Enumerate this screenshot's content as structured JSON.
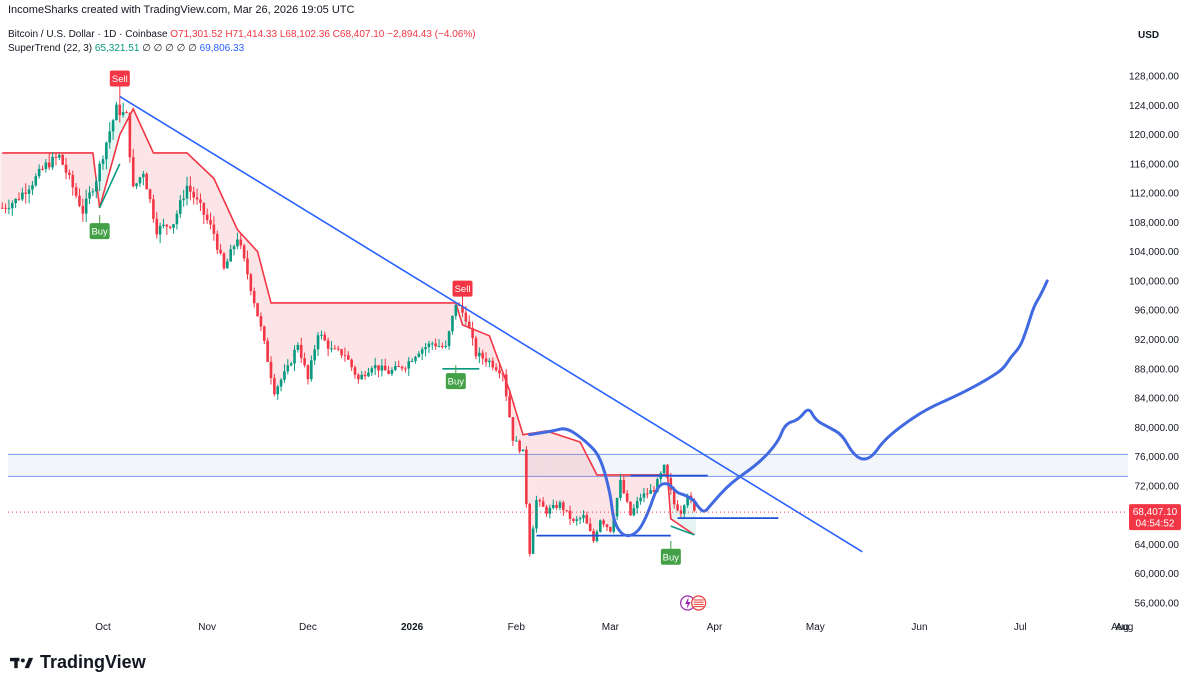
{
  "header": {
    "created_by": "IncomeSharks created with TradingView.com, Mar 26, 2026 19:05 UTC"
  },
  "legend": {
    "symbol": "Bitcoin / U.S. Dollar · 1D · Coinbase",
    "ohlc": "O71,301.52  H71,414.33  L68,102.36  C68,407.10  −2,894.43 (−4.06%)",
    "supertrend_label": "SuperTrend (22, 3)",
    "supertrend_up": "65,321.51",
    "supertrend_zeros": "∅ ∅ ∅ ∅ ∅",
    "supertrend_dn": "69,806.33"
  },
  "axis_currency": "USD",
  "footer": {
    "brand": "TradingView"
  },
  "colors": {
    "up": "#089981",
    "down": "#f23645",
    "trend": "#2962ff",
    "projection": "#4169e1",
    "band": "#e8ecf6"
  },
  "chart_data": {
    "type": "candlestick",
    "title": "Bitcoin / U.S. Dollar · 1D · Coinbase",
    "ylabel": "USD",
    "ylim": [
      54000,
      132000
    ],
    "y_ticks": [
      56000,
      60000,
      64000,
      68000,
      72000,
      76000,
      80000,
      84000,
      88000,
      92000,
      96000,
      100000,
      104000,
      108000,
      112000,
      116000,
      120000,
      124000,
      128000
    ],
    "y_tick_labels": [
      "56,000.00",
      "60,000.00",
      "64,000.00",
      "68,000.00",
      "72,000.00",
      "76,000.00",
      "80,000.00",
      "84,000.00",
      "88,000.00",
      "92,000.00",
      "96,000.00",
      "100,000.00",
      "104,000.00",
      "108,000.00",
      "112,000.00",
      "116,000.00",
      "120,000.00",
      "124,000.00",
      "128,000.00"
    ],
    "x_ticks": [
      "Oct",
      "Nov",
      "Dec",
      "2026",
      "Feb",
      "Mar",
      "Apr",
      "May",
      "Jun",
      "Jul",
      "Aug"
    ],
    "x_tick_dates": [
      "2025-10-01",
      "2025-11-01",
      "2025-12-01",
      "2026-01-01",
      "2026-02-01",
      "2026-03-01",
      "2026-04-01",
      "2026-05-01",
      "2026-06-01",
      "2026-07-01",
      "2026-08-01"
    ],
    "last_price": {
      "value": 68407.1,
      "label": "68,407.10",
      "countdown": "04:54:52"
    },
    "close_path": [
      [
        "2025-09-01",
        110000
      ],
      [
        "2025-09-05",
        111000
      ],
      [
        "2025-09-10",
        113500
      ],
      [
        "2025-09-14",
        115800
      ],
      [
        "2025-09-18",
        117000
      ],
      [
        "2025-09-22",
        112800
      ],
      [
        "2025-09-25",
        109500
      ],
      [
        "2025-09-29",
        114000
      ],
      [
        "2025-10-02",
        119000
      ],
      [
        "2025-10-05",
        123500
      ],
      [
        "2025-10-08",
        122500
      ],
      [
        "2025-10-10",
        112500
      ],
      [
        "2025-10-13",
        115000
      ],
      [
        "2025-10-17",
        107000
      ],
      [
        "2025-10-22",
        108000
      ],
      [
        "2025-10-26",
        113000
      ],
      [
        "2025-10-30",
        110000
      ],
      [
        "2025-11-03",
        106500
      ],
      [
        "2025-11-06",
        101500
      ],
      [
        "2025-11-10",
        106000
      ],
      [
        "2025-11-13",
        101000
      ],
      [
        "2025-11-17",
        93500
      ],
      [
        "2025-11-21",
        85000
      ],
      [
        "2025-11-25",
        88000
      ],
      [
        "2025-11-28",
        91500
      ],
      [
        "2025-12-01",
        86500
      ],
      [
        "2025-12-04",
        93000
      ],
      [
        "2025-12-08",
        90500
      ],
      [
        "2025-12-12",
        90000
      ],
      [
        "2025-12-16",
        86500
      ],
      [
        "2025-12-20",
        88500
      ],
      [
        "2025-12-25",
        87500
      ],
      [
        "2025-12-30",
        88500
      ],
      [
        "2026-01-03",
        90500
      ],
      [
        "2026-01-07",
        91500
      ],
      [
        "2026-01-11",
        90800
      ],
      [
        "2026-01-14",
        97000
      ],
      [
        "2026-01-17",
        95000
      ],
      [
        "2026-01-20",
        90000
      ],
      [
        "2026-01-24",
        89000
      ],
      [
        "2026-01-28",
        87500
      ],
      [
        "2026-01-31",
        78500
      ],
      [
        "2026-02-03",
        76500
      ],
      [
        "2026-02-05",
        63000
      ],
      [
        "2026-02-07",
        70000
      ],
      [
        "2026-02-10",
        68500
      ],
      [
        "2026-02-14",
        69500
      ],
      [
        "2026-02-18",
        67000
      ],
      [
        "2026-02-21",
        67800
      ],
      [
        "2026-02-24",
        64500
      ],
      [
        "2026-02-26",
        67500
      ],
      [
        "2026-03-01",
        66000
      ],
      [
        "2026-03-04",
        72500
      ],
      [
        "2026-03-07",
        68000
      ],
      [
        "2026-03-10",
        70500
      ],
      [
        "2026-03-14",
        71500
      ],
      [
        "2026-03-17",
        74500
      ],
      [
        "2026-03-20",
        69500
      ],
      [
        "2026-03-22",
        68500
      ],
      [
        "2026-03-24",
        71000
      ],
      [
        "2026-03-26",
        68407
      ]
    ],
    "supertrend": [
      [
        "2025-09-01",
        117500
      ],
      [
        "2025-09-28",
        117500
      ],
      [
        "2025-09-30",
        110000
      ],
      [
        "2025-10-06",
        120000
      ],
      [
        "2025-10-10",
        123500
      ],
      [
        "2025-10-16",
        117500
      ],
      [
        "2025-10-26",
        117500
      ],
      [
        "2025-11-03",
        114000
      ],
      [
        "2025-11-10",
        107000
      ],
      [
        "2025-11-16",
        104000
      ],
      [
        "2025-11-20",
        97000
      ],
      [
        "2026-01-14",
        97000
      ],
      [
        "2026-01-16",
        94000
      ],
      [
        "2026-01-24",
        92500
      ],
      [
        "2026-01-30",
        85000
      ],
      [
        "2026-02-03",
        79000
      ],
      [
        "2026-02-10",
        79500
      ],
      [
        "2026-02-20",
        78000
      ],
      [
        "2026-02-25",
        73500
      ],
      [
        "2026-03-18",
        73500
      ],
      [
        "2026-03-19",
        67500
      ],
      [
        "2026-03-26",
        65300
      ]
    ],
    "signals": [
      {
        "label": "Sell",
        "date": "2025-10-06",
        "price": 125200
      },
      {
        "label": "Buy",
        "date": "2025-09-30",
        "price": 109000
      },
      {
        "label": "Sell",
        "date": "2026-01-16",
        "price": 96500
      },
      {
        "label": "Buy",
        "date": "2026-01-14",
        "price": 88500
      },
      {
        "label": "Buy",
        "date": "2026-03-19",
        "price": 64500
      }
    ],
    "trendline": [
      [
        "2025-10-06",
        125200
      ],
      [
        "2026-05-15",
        63000
      ]
    ],
    "resistance_band": [
      73300,
      76300
    ],
    "support_lines": [
      {
        "from": "2026-02-07",
        "to": "2026-03-19",
        "price": 65200
      },
      {
        "from": "2026-03-21",
        "to": "2026-04-20",
        "price": 67600
      },
      {
        "from": "2026-03-07",
        "to": "2026-03-30",
        "price": 73400
      }
    ],
    "projection_path": [
      [
        "2026-02-05",
        79000
      ],
      [
        "2026-02-12",
        79500
      ],
      [
        "2026-02-16",
        80000
      ],
      [
        "2026-02-22",
        78000
      ],
      [
        "2026-02-26",
        76000
      ],
      [
        "2026-03-01",
        71000
      ],
      [
        "2026-03-02",
        67000
      ],
      [
        "2026-03-05",
        65000
      ],
      [
        "2026-03-09",
        65500
      ],
      [
        "2026-03-12",
        68000
      ],
      [
        "2026-03-15",
        72000
      ],
      [
        "2026-03-18",
        72500
      ],
      [
        "2026-03-21",
        71000
      ],
      [
        "2026-03-23",
        70800
      ],
      [
        "2026-03-26",
        70000
      ],
      [
        "2026-03-27",
        69200
      ],
      [
        "2026-03-29",
        68300
      ],
      [
        "2026-03-31",
        69500
      ],
      [
        "2026-04-06",
        72500
      ],
      [
        "2026-04-14",
        75000
      ],
      [
        "2026-04-20",
        78000
      ],
      [
        "2026-04-22",
        80500
      ],
      [
        "2026-04-26",
        81000
      ],
      [
        "2026-04-29",
        82800
      ],
      [
        "2026-05-01",
        81000
      ],
      [
        "2026-05-05",
        80000
      ],
      [
        "2026-05-09",
        79000
      ],
      [
        "2026-05-12",
        76500
      ],
      [
        "2026-05-15",
        75500
      ],
      [
        "2026-05-18",
        76000
      ],
      [
        "2026-05-21",
        78000
      ],
      [
        "2026-05-26",
        80000
      ],
      [
        "2026-06-03",
        82500
      ],
      [
        "2026-06-13",
        84500
      ],
      [
        "2026-06-21",
        86500
      ],
      [
        "2026-06-26",
        88000
      ],
      [
        "2026-06-28",
        89500
      ],
      [
        "2026-07-01",
        91000
      ],
      [
        "2026-07-03",
        93500
      ],
      [
        "2026-07-05",
        96500
      ],
      [
        "2026-07-07",
        98000
      ],
      [
        "2026-07-09",
        100000
      ]
    ]
  }
}
